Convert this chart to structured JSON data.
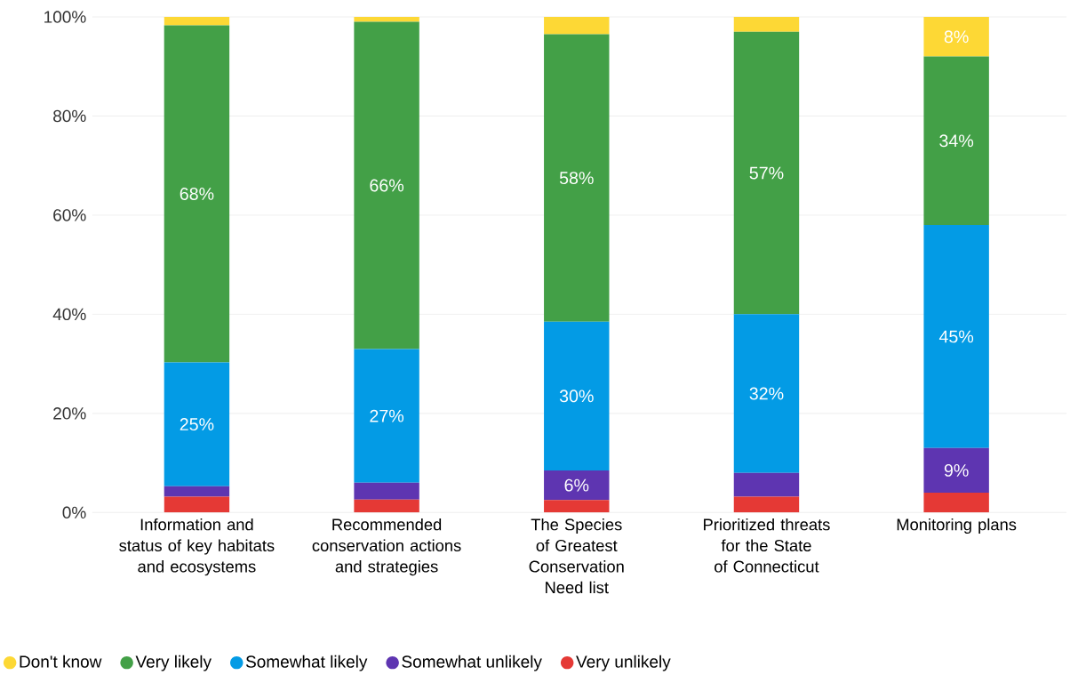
{
  "chart_data": {
    "type": "bar",
    "stacked": true,
    "categories": [
      "Information and status of key habitats and ecosystems",
      "Recommended conservation actions and strategies",
      "The Species of Greatest Conservation Need list",
      "Prioritized threats for the State of Connecticut",
      "Monitoring plans"
    ],
    "series": [
      {
        "name": "Very unlikely",
        "color": "#e53935",
        "values": [
          3.2,
          2.6,
          2.5,
          3.2,
          4
        ],
        "value_labels": [
          null,
          null,
          null,
          null,
          null
        ]
      },
      {
        "name": "Somewhat unlikely",
        "color": "#5e35b1",
        "values": [
          2.1,
          3.4,
          6,
          4.8,
          9
        ],
        "value_labels": [
          null,
          null,
          "6%",
          null,
          "9%"
        ]
      },
      {
        "name": "Somewhat likely",
        "color": "#039be5",
        "values": [
          25,
          27,
          30,
          32,
          45
        ],
        "value_labels": [
          "25%",
          "27%",
          "30%",
          "32%",
          "45%"
        ]
      },
      {
        "name": "Very likely",
        "color": "#43a047",
        "values": [
          68,
          66,
          58,
          57,
          34
        ],
        "value_labels": [
          "68%",
          "66%",
          "58%",
          "57%",
          "34%"
        ]
      },
      {
        "name": "Don't know",
        "color": "#fdd835",
        "values": [
          1.7,
          1,
          3.5,
          3,
          8
        ],
        "value_labels": [
          null,
          null,
          null,
          null,
          "8%"
        ]
      }
    ],
    "ylim": [
      0,
      100
    ],
    "yticks": [
      {
        "value": 0,
        "label": "0%"
      },
      {
        "value": 20,
        "label": "20%"
      },
      {
        "value": 40,
        "label": "40%"
      },
      {
        "value": 60,
        "label": "60%"
      },
      {
        "value": 80,
        "label": "80%"
      },
      {
        "value": 100,
        "label": "100%"
      }
    ],
    "grid": "y",
    "legend": "bottom"
  }
}
